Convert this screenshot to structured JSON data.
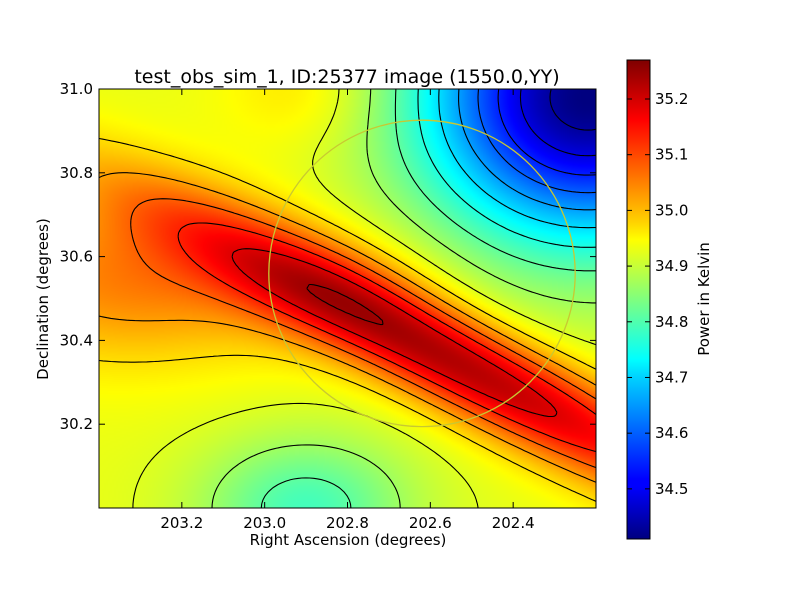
{
  "chart_data": {
    "type": "heatmap",
    "title": "test_obs_sim_1, ID:25377 image (1550.0,YY)",
    "xlabel": "Right Ascension (degrees)",
    "ylabel": "Declination (degrees)",
    "xlim": [
      203.4,
      202.2
    ],
    "ylim": [
      30.0,
      31.0
    ],
    "x_inverted": true,
    "x_ticks": [
      203.2,
      203.0,
      202.8,
      202.6,
      202.4
    ],
    "x_tick_labels": [
      "203.2",
      "203.0",
      "202.8",
      "202.6",
      "202.4"
    ],
    "y_ticks": [
      30.2,
      30.4,
      30.6,
      30.8,
      31.0
    ],
    "y_tick_labels": [
      "30.2",
      "30.4",
      "30.6",
      "30.8",
      "31.0"
    ],
    "colormap": "jet",
    "colorbar": {
      "label": "Power in Kelvin",
      "range": [
        34.41,
        35.27
      ],
      "ticks": [
        34.5,
        34.6,
        34.7,
        34.8,
        34.9,
        35.0,
        35.1,
        35.2
      ],
      "tick_labels": [
        "34.5",
        "34.6",
        "34.7",
        "34.8",
        "34.9",
        "35.0",
        "35.1",
        "35.2"
      ]
    },
    "peak": {
      "ra": 202.88,
      "dec": 30.52,
      "value": 35.25
    },
    "minimum": {
      "ra": 202.22,
      "dec": 30.98,
      "value": 34.42
    },
    "contours": {
      "color": "#000000",
      "levels_approx": 16
    },
    "beam_circle": {
      "center_ra": 202.62,
      "center_dec": 30.56,
      "radius_deg": 0.37,
      "color": "#c8c832"
    }
  }
}
